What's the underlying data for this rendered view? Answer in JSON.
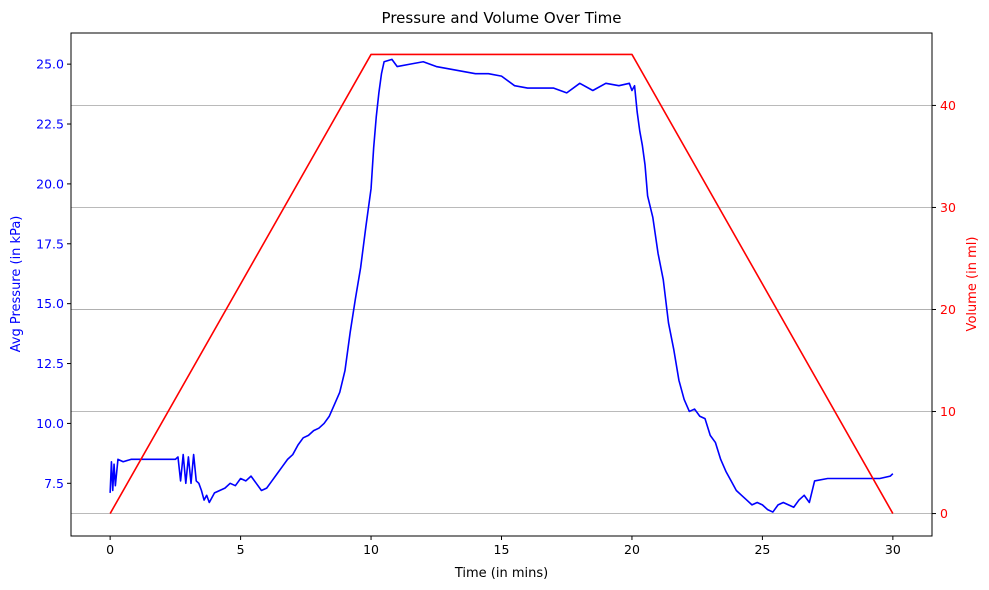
{
  "chart_data": {
    "type": "line",
    "title": "Pressure and Volume Over Time",
    "xlabel": "Time (in mins)",
    "ylabel_left": "Avg Pressure (in kPa)",
    "ylabel_right": "Volume (in ml)",
    "xlim": [
      -1.5,
      31.5
    ],
    "ylim_left": [
      5.3,
      26.3
    ],
    "ylim_right": [
      -2.2,
      47.1
    ],
    "x_ticks": [
      0,
      5,
      10,
      15,
      20,
      25,
      30
    ],
    "y_left_ticks": [
      7.5,
      10.0,
      12.5,
      15.0,
      17.5,
      20.0,
      22.5,
      25.0
    ],
    "y_right_ticks": [
      0,
      10,
      20,
      30,
      40
    ],
    "grid": "horizontal lines at right-axis ticks",
    "colors": {
      "pressure": "#0000ff",
      "volume": "#ff0000",
      "grid": "#b0b0b0",
      "axis": "#000000",
      "background": "#ffffff"
    },
    "series": [
      {
        "axis": "left",
        "color": "#0000ff",
        "x": [
          0,
          0.05,
          0.1,
          0.15,
          0.2,
          0.3,
          0.5,
          0.8,
          1.0,
          1.5,
          2.0,
          2.5,
          2.6,
          2.7,
          2.8,
          2.9,
          3.0,
          3.1,
          3.2,
          3.3,
          3.4,
          3.5,
          3.6,
          3.7,
          3.8,
          4.0,
          4.2,
          4.4,
          4.6,
          4.8,
          5.0,
          5.2,
          5.4,
          5.6,
          5.8,
          6.0,
          6.2,
          6.4,
          6.6,
          6.8,
          7.0,
          7.2,
          7.4,
          7.6,
          7.8,
          8.0,
          8.2,
          8.4,
          8.6,
          8.8,
          9.0,
          9.2,
          9.4,
          9.6,
          9.8,
          10.0,
          10.1,
          10.2,
          10.3,
          10.4,
          10.5,
          10.8,
          11.0,
          11.5,
          12.0,
          12.5,
          13.0,
          13.5,
          14.0,
          14.5,
          15.0,
          15.5,
          16.0,
          16.5,
          17.0,
          17.5,
          18.0,
          18.5,
          19.0,
          19.5,
          19.9,
          20.0,
          20.1,
          20.2,
          20.3,
          20.4,
          20.5,
          20.6,
          20.8,
          21.0,
          21.2,
          21.4,
          21.6,
          21.8,
          22.0,
          22.2,
          22.4,
          22.6,
          22.8,
          23.0,
          23.2,
          23.4,
          23.6,
          23.8,
          24.0,
          24.2,
          24.4,
          24.6,
          24.8,
          25.0,
          25.2,
          25.4,
          25.6,
          25.8,
          26.0,
          26.2,
          26.4,
          26.6,
          26.8,
          27.0,
          27.5,
          28.0,
          28.5,
          29.0,
          29.5,
          29.9,
          30.0
        ],
        "y": [
          7.1,
          8.4,
          7.2,
          8.3,
          7.4,
          8.5,
          8.4,
          8.5,
          8.5,
          8.5,
          8.5,
          8.5,
          8.6,
          7.6,
          8.7,
          7.5,
          8.6,
          7.5,
          8.7,
          7.6,
          7.5,
          7.2,
          6.8,
          7.0,
          6.7,
          7.1,
          7.2,
          7.3,
          7.5,
          7.4,
          7.7,
          7.6,
          7.8,
          7.5,
          7.2,
          7.3,
          7.6,
          7.9,
          8.2,
          8.5,
          8.7,
          9.1,
          9.4,
          9.5,
          9.7,
          9.8,
          10.0,
          10.3,
          10.8,
          11.3,
          12.2,
          13.8,
          15.2,
          16.5,
          18.2,
          19.8,
          21.5,
          22.8,
          23.8,
          24.6,
          25.1,
          25.2,
          24.9,
          25.0,
          25.1,
          24.9,
          24.8,
          24.7,
          24.6,
          24.6,
          24.5,
          24.1,
          24.0,
          24.0,
          24.0,
          23.8,
          24.2,
          23.9,
          24.2,
          24.1,
          24.2,
          23.9,
          24.1,
          23.0,
          22.2,
          21.6,
          20.8,
          19.5,
          18.6,
          17.1,
          16.0,
          14.2,
          13.1,
          11.8,
          11.0,
          10.5,
          10.6,
          10.3,
          10.2,
          9.5,
          9.2,
          8.5,
          8.0,
          7.6,
          7.2,
          7.0,
          6.8,
          6.6,
          6.7,
          6.6,
          6.4,
          6.3,
          6.6,
          6.7,
          6.6,
          6.5,
          6.8,
          7.0,
          6.7,
          7.6,
          7.7,
          7.7,
          7.7,
          7.7,
          7.7,
          7.8,
          7.9
        ]
      },
      {
        "axis": "right",
        "color": "#ff0000",
        "x": [
          0,
          10,
          20,
          30
        ],
        "y": [
          0,
          45,
          45,
          0
        ]
      }
    ]
  }
}
